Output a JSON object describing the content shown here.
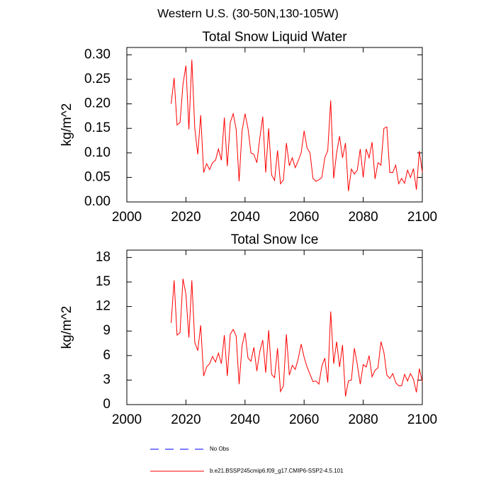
{
  "title": "Western U.S. (30-50N,130-105W)",
  "chart_data": [
    {
      "type": "line",
      "title": "Total Snow Liquid Water",
      "ylabel": "kg/m^2",
      "x": [
        2015,
        2016,
        2017,
        2018,
        2019,
        2020,
        2021,
        2022,
        2023,
        2024,
        2025,
        2026,
        2027,
        2028,
        2029,
        2030,
        2031,
        2032,
        2033,
        2034,
        2035,
        2036,
        2037,
        2038,
        2039,
        2040,
        2041,
        2042,
        2043,
        2044,
        2045,
        2046,
        2047,
        2048,
        2049,
        2050,
        2051,
        2052,
        2053,
        2054,
        2055,
        2056,
        2057,
        2058,
        2059,
        2060,
        2061,
        2062,
        2063,
        2064,
        2065,
        2066,
        2067,
        2068,
        2069,
        2070,
        2071,
        2072,
        2073,
        2074,
        2075,
        2076,
        2077,
        2078,
        2079,
        2080,
        2081,
        2082,
        2083,
        2084,
        2085,
        2086,
        2087,
        2088,
        2089,
        2090,
        2091,
        2092,
        2093,
        2094,
        2095,
        2096,
        2097,
        2098,
        2099,
        2100
      ],
      "series": [
        {
          "color": "#ff0000",
          "values": [
            0.2,
            0.253,
            0.157,
            0.162,
            0.24,
            0.278,
            0.148,
            0.29,
            0.15,
            0.097,
            0.177,
            0.06,
            0.078,
            0.066,
            0.08,
            0.085,
            0.108,
            0.085,
            0.172,
            0.073,
            0.162,
            0.18,
            0.148,
            0.042,
            0.145,
            0.18,
            0.15,
            0.1,
            0.097,
            0.08,
            0.13,
            0.174,
            0.06,
            0.15,
            0.055,
            0.044,
            0.105,
            0.037,
            0.045,
            0.12,
            0.074,
            0.09,
            0.07,
            0.084,
            0.1,
            0.145,
            0.11,
            0.1,
            0.048,
            0.042,
            0.045,
            0.05,
            0.09,
            0.105,
            0.207,
            0.048,
            0.1,
            0.134,
            0.09,
            0.12,
            0.022,
            0.067,
            0.057,
            0.065,
            0.108,
            0.05,
            0.108,
            0.09,
            0.122,
            0.047,
            0.08,
            0.075,
            0.15,
            0.153,
            0.06,
            0.06,
            0.075,
            0.037,
            0.048,
            0.038,
            0.065,
            0.05,
            0.068,
            0.025,
            0.104,
            0.06
          ]
        }
      ],
      "xlim": [
        2000,
        2100
      ],
      "xticks": [
        2000,
        2020,
        2040,
        2060,
        2080,
        2100
      ],
      "ylim": [
        0,
        0.315
      ],
      "yticks": [
        {
          "value": 0,
          "label": "0.00"
        },
        {
          "value": 0.05,
          "label": "0.05"
        },
        {
          "value": 0.1,
          "label": "0.10"
        },
        {
          "value": 0.15,
          "label": "0.15"
        },
        {
          "value": 0.2,
          "label": "0.20"
        },
        {
          "value": 0.25,
          "label": "0.25"
        },
        {
          "value": 0.3,
          "label": "0.30"
        }
      ]
    },
    {
      "type": "line",
      "title": "Total Snow Ice",
      "ylabel": "kg/m^2",
      "x": [
        2015,
        2016,
        2017,
        2018,
        2019,
        2020,
        2021,
        2022,
        2023,
        2024,
        2025,
        2026,
        2027,
        2028,
        2029,
        2030,
        2031,
        2032,
        2033,
        2034,
        2035,
        2036,
        2037,
        2038,
        2039,
        2040,
        2041,
        2042,
        2043,
        2044,
        2045,
        2046,
        2047,
        2048,
        2049,
        2050,
        2051,
        2052,
        2053,
        2054,
        2055,
        2056,
        2057,
        2058,
        2059,
        2060,
        2061,
        2062,
        2063,
        2064,
        2065,
        2066,
        2067,
        2068,
        2069,
        2070,
        2071,
        2072,
        2073,
        2074,
        2075,
        2076,
        2077,
        2078,
        2079,
        2080,
        2081,
        2082,
        2083,
        2084,
        2085,
        2086,
        2087,
        2088,
        2089,
        2090,
        2091,
        2092,
        2093,
        2094,
        2095,
        2096,
        2097,
        2098,
        2099,
        2100
      ],
      "series": [
        {
          "color": "#ff0000",
          "values": [
            10,
            15.2,
            8.5,
            8.8,
            15.4,
            13.5,
            8.2,
            15.2,
            7.6,
            6.6,
            9.7,
            3.5,
            4.6,
            5.0,
            5.9,
            5.2,
            6.3,
            5.0,
            8.5,
            3.5,
            8.6,
            9.2,
            8.4,
            2.5,
            7.2,
            8.8,
            5.7,
            5.3,
            7.0,
            4.1,
            6.5,
            7.9,
            3.9,
            9.1,
            3.7,
            3.3,
            6.9,
            1.6,
            2.3,
            8.6,
            3.6,
            4.8,
            4.3,
            5.6,
            7.4,
            5.8,
            4.6,
            3.7,
            2.8,
            2.9,
            2.5,
            4.7,
            5.7,
            2.7,
            11.4,
            5.0,
            7.7,
            4.6,
            7.3,
            1.0,
            2.9,
            3.0,
            6.9,
            4.9,
            2.5,
            4.9,
            4.6,
            6.0,
            3.4,
            4.2,
            4.5,
            7.7,
            6.4,
            3.6,
            3.2,
            3.8,
            2.7,
            2.3,
            2.3,
            3.7,
            2.9,
            3.8,
            3.1,
            1.5,
            4.4,
            2.8
          ]
        }
      ],
      "xlim": [
        2000,
        2100
      ],
      "xticks": [
        2000,
        2020,
        2040,
        2060,
        2080,
        2100
      ],
      "ylim": [
        0,
        18.9
      ],
      "yticks": [
        0,
        3,
        6,
        9,
        12,
        15,
        18
      ]
    }
  ],
  "legend": [
    {
      "name": "No Obs",
      "color": "#0000ff",
      "dashed": true
    },
    {
      "name": "b.e21.BSSP245cmip6.f09_g17.CMIP6-SSP2-4.5.101",
      "color": "#ff0000",
      "dashed": false
    }
  ]
}
